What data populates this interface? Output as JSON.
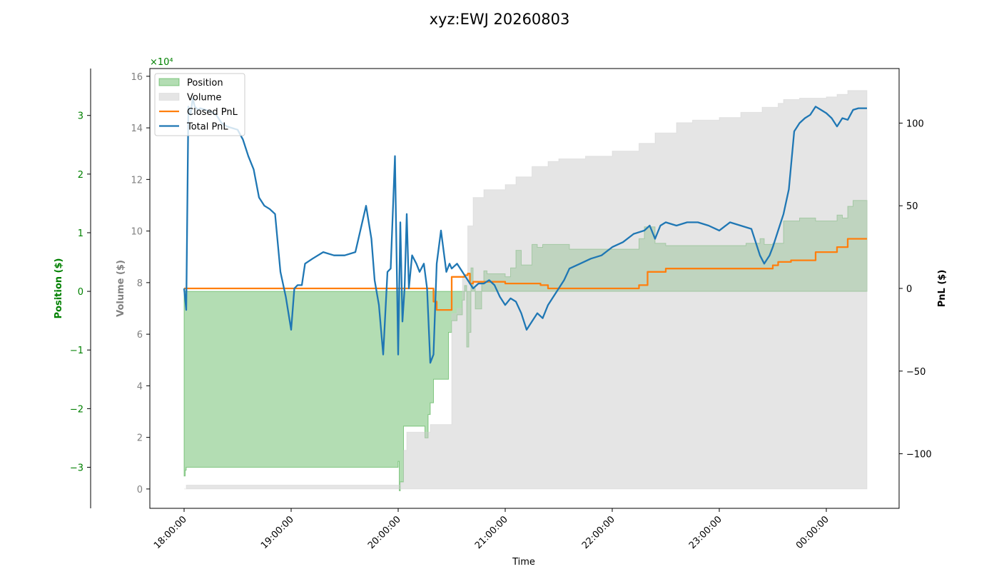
{
  "chart_data": {
    "type": "area",
    "title": "xyz:EWJ 20260803",
    "xlabel": "Time",
    "x_ticks": [
      "18:00:00",
      "19:00:00",
      "20:00:00",
      "21:00:00",
      "22:00:00",
      "23:00:00",
      "00:00:00"
    ],
    "x_range_hours": [
      17.68,
      24.68
    ],
    "axes": {
      "position": {
        "label": "Position ($)",
        "color": "#008000",
        "range": [
          -3.7,
          3.8
        ],
        "ticks": [
          -3,
          -2,
          -1,
          0,
          1,
          2,
          3
        ],
        "tick_labels": [
          "−3",
          "−2",
          "−1",
          "0",
          "1",
          "2",
          "3"
        ],
        "multiplier_label": "×10⁴"
      },
      "volume": {
        "label": "Volume ($)",
        "color": "#808080",
        "range": [
          -0.75,
          16.3
        ],
        "ticks": [
          0,
          2,
          4,
          6,
          8,
          10,
          12,
          14,
          16
        ],
        "tick_labels": [
          "0",
          "2",
          "4",
          "6",
          "8",
          "10",
          "12",
          "14",
          "16"
        ]
      },
      "pnl": {
        "label": "PnL ($)",
        "color": "#000000",
        "range": [
          -133,
          133
        ],
        "ticks": [
          -100,
          -50,
          0,
          50,
          100
        ],
        "tick_labels": [
          "−100",
          "−50",
          "0",
          "50",
          "100"
        ]
      }
    },
    "legend": {
      "position": "top-left",
      "items": [
        {
          "label": "Position",
          "kind": "patch",
          "color": "#2ca02c"
        },
        {
          "label": "Volume",
          "kind": "patch",
          "color": "#cccccc"
        },
        {
          "label": "Closed PnL",
          "kind": "line",
          "color": "#ff7f0e"
        },
        {
          "label": "Total PnL",
          "kind": "line",
          "color": "#1f77b4"
        }
      ]
    },
    "series": [
      {
        "name": "Position",
        "axis": "position",
        "style": "area",
        "color": "#2ca02c",
        "x": [
          18.0,
          18.01,
          18.02,
          18.5,
          19.0,
          19.5,
          19.98,
          20.0,
          20.01,
          20.02,
          20.05,
          20.08,
          20.1,
          20.2,
          20.25,
          20.28,
          20.3,
          20.33,
          20.36,
          20.4,
          20.47,
          20.5,
          20.55,
          20.6,
          20.62,
          20.64,
          20.66,
          20.68,
          20.7,
          20.72,
          20.78,
          20.8,
          20.83,
          20.87,
          20.9,
          21.0,
          21.05,
          21.1,
          21.15,
          21.2,
          21.25,
          21.3,
          21.35,
          21.4,
          21.5,
          21.6,
          21.75,
          22.0,
          22.25,
          22.3,
          22.4,
          22.5,
          22.75,
          23.0,
          23.25,
          23.38,
          23.42,
          23.5,
          23.6,
          23.75,
          23.9,
          24.0,
          24.1,
          24.15,
          24.2,
          24.25,
          24.38
        ],
        "y": [
          -3.15,
          -3.05,
          -3.0,
          -3.0,
          -3.0,
          -3.0,
          -3.0,
          -2.9,
          -3.4,
          -3.25,
          -2.3,
          -2.3,
          -2.3,
          -2.3,
          -2.5,
          -2.1,
          -1.9,
          -1.5,
          -1.5,
          -1.5,
          -0.7,
          -0.5,
          -0.4,
          -0.15,
          0.1,
          -0.95,
          -0.7,
          0.4,
          0.05,
          -0.3,
          0.15,
          0.35,
          0.3,
          0.3,
          0.3,
          0.25,
          0.4,
          0.7,
          0.45,
          0.45,
          0.8,
          0.75,
          0.8,
          0.8,
          0.8,
          0.72,
          0.72,
          0.72,
          0.9,
          1.1,
          0.82,
          0.78,
          0.78,
          0.78,
          0.82,
          0.9,
          0.8,
          0.82,
          1.2,
          1.25,
          1.2,
          1.2,
          1.3,
          1.25,
          1.45,
          1.55,
          1.55
        ]
      },
      {
        "name": "Volume",
        "axis": "volume",
        "style": "area",
        "color": "#cccccc",
        "x": [
          18.0,
          18.02,
          19.0,
          20.0,
          20.02,
          20.05,
          20.08,
          20.25,
          20.3,
          20.4,
          20.5,
          20.55,
          20.6,
          20.65,
          20.7,
          20.8,
          20.95,
          21.0,
          21.1,
          21.25,
          21.4,
          21.5,
          21.75,
          22.0,
          22.25,
          22.4,
          22.6,
          22.75,
          23.0,
          23.2,
          23.4,
          23.55,
          23.6,
          23.75,
          24.0,
          24.1,
          24.2,
          24.38
        ],
        "y": [
          0.0,
          0.15,
          0.15,
          0.15,
          0.25,
          1.5,
          2.2,
          2.2,
          2.5,
          2.5,
          6.8,
          7.0,
          8.2,
          10.2,
          11.3,
          11.6,
          11.6,
          11.8,
          12.1,
          12.5,
          12.7,
          12.8,
          12.9,
          13.1,
          13.4,
          13.8,
          14.2,
          14.3,
          14.4,
          14.6,
          14.8,
          14.95,
          15.1,
          15.15,
          15.2,
          15.3,
          15.45,
          15.45
        ]
      },
      {
        "name": "Closed PnL",
        "axis": "pnl",
        "style": "line",
        "color": "#ff7f0e",
        "x": [
          18.0,
          19.0,
          20.0,
          20.15,
          20.3,
          20.33,
          20.36,
          20.47,
          20.5,
          20.62,
          20.65,
          20.67,
          20.7,
          21.0,
          21.33,
          21.4,
          22.0,
          22.25,
          22.33,
          22.5,
          22.75,
          23.0,
          23.25,
          23.5,
          23.55,
          23.67,
          23.75,
          23.83,
          23.9,
          24.0,
          24.1,
          24.15,
          24.2,
          24.38
        ],
        "y": [
          0,
          0,
          0,
          0,
          0,
          -8,
          -13,
          -13,
          7,
          8,
          9,
          3,
          4,
          3,
          2,
          0,
          0,
          2,
          10,
          12,
          12,
          12,
          12,
          14,
          16,
          17,
          17,
          17,
          22,
          22,
          25,
          25,
          30,
          30
        ]
      },
      {
        "name": "Total PnL",
        "axis": "pnl",
        "style": "line",
        "color": "#1f77b4",
        "x": [
          18.0,
          18.02,
          18.04,
          18.06,
          18.08,
          18.1,
          18.13,
          18.15,
          18.2,
          18.25,
          18.3,
          18.35,
          18.4,
          18.5,
          18.55,
          18.6,
          18.65,
          18.7,
          18.75,
          18.8,
          18.85,
          18.9,
          18.95,
          19.0,
          19.03,
          19.06,
          19.08,
          19.1,
          19.13,
          19.2,
          19.3,
          19.4,
          19.5,
          19.6,
          19.7,
          19.75,
          19.78,
          19.82,
          19.86,
          19.9,
          19.93,
          19.97,
          20.0,
          20.02,
          20.04,
          20.06,
          20.08,
          20.1,
          20.13,
          20.17,
          20.2,
          20.24,
          20.27,
          20.3,
          20.33,
          20.36,
          20.4,
          20.45,
          20.48,
          20.5,
          20.55,
          20.6,
          20.65,
          20.7,
          20.75,
          20.8,
          20.85,
          20.9,
          20.95,
          21.0,
          21.05,
          21.1,
          21.15,
          21.2,
          21.25,
          21.3,
          21.35,
          21.4,
          21.45,
          21.5,
          21.55,
          21.6,
          21.7,
          21.8,
          21.9,
          22.0,
          22.1,
          22.2,
          22.3,
          22.35,
          22.4,
          22.45,
          22.5,
          22.6,
          22.7,
          22.8,
          22.9,
          23.0,
          23.1,
          23.2,
          23.3,
          23.38,
          23.42,
          23.47,
          23.5,
          23.55,
          23.6,
          23.65,
          23.7,
          23.75,
          23.8,
          23.85,
          23.9,
          23.95,
          24.0,
          24.05,
          24.1,
          24.15,
          24.2,
          24.25,
          24.3,
          24.38
        ],
        "y": [
          0,
          -13,
          110,
          105,
          115,
          110,
          108,
          109,
          108,
          107,
          105,
          100,
          98,
          96,
          90,
          80,
          72,
          55,
          50,
          48,
          45,
          10,
          -5,
          -25,
          0,
          2,
          2,
          2,
          15,
          18,
          22,
          20,
          20,
          22,
          50,
          30,
          5,
          -10,
          -40,
          10,
          12,
          80,
          -40,
          40,
          -20,
          0,
          45,
          0,
          20,
          15,
          10,
          15,
          0,
          -45,
          -40,
          15,
          35,
          10,
          15,
          12,
          15,
          10,
          5,
          0,
          3,
          3,
          5,
          2,
          -5,
          -10,
          -6,
          -8,
          -15,
          -25,
          -20,
          -15,
          -18,
          -10,
          -5,
          0,
          5,
          12,
          15,
          18,
          20,
          25,
          28,
          33,
          35,
          38,
          30,
          38,
          40,
          38,
          40,
          40,
          38,
          35,
          40,
          38,
          36,
          20,
          15,
          20,
          25,
          35,
          45,
          60,
          95,
          100,
          103,
          105,
          110,
          108,
          106,
          103,
          98,
          103,
          102,
          108,
          109,
          109
        ]
      }
    ]
  }
}
